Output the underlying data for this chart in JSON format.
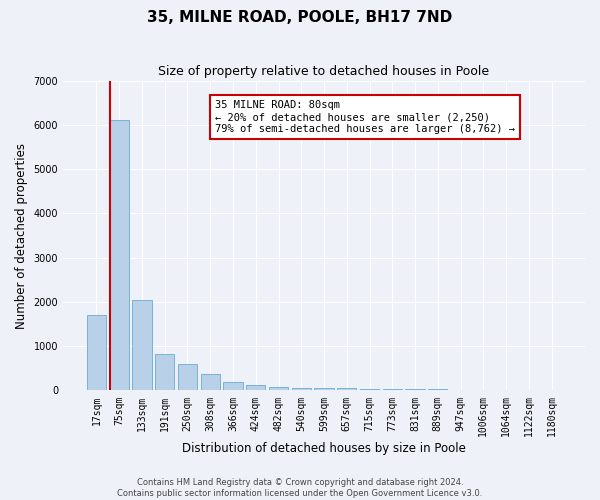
{
  "title": "35, MILNE ROAD, POOLE, BH17 7ND",
  "subtitle": "Size of property relative to detached houses in Poole",
  "xlabel": "Distribution of detached houses by size in Poole",
  "ylabel": "Number of detached properties",
  "bar_labels": [
    "17sqm",
    "75sqm",
    "133sqm",
    "191sqm",
    "250sqm",
    "308sqm",
    "366sqm",
    "424sqm",
    "482sqm",
    "540sqm",
    "599sqm",
    "657sqm",
    "715sqm",
    "773sqm",
    "831sqm",
    "889sqm",
    "947sqm",
    "1006sqm",
    "1064sqm",
    "1122sqm",
    "1180sqm"
  ],
  "bar_values": [
    1700,
    6100,
    2050,
    820,
    600,
    380,
    180,
    115,
    75,
    65,
    50,
    45,
    40,
    32,
    28,
    22,
    18,
    15,
    12,
    10,
    8
  ],
  "bar_color": "#b8d0e8",
  "bar_edge_color": "#6aabd2",
  "property_line_x": 1,
  "annotation_text": "35 MILNE ROAD: 80sqm\n← 20% of detached houses are smaller (2,250)\n79% of semi-detached houses are larger (8,762) →",
  "annotation_box_color": "#ffffff",
  "annotation_box_edge": "#cc0000",
  "vline_color": "#cc0000",
  "ylim": [
    0,
    7000
  ],
  "yticks": [
    0,
    1000,
    2000,
    3000,
    4000,
    5000,
    6000,
    7000
  ],
  "footer_line1": "Contains HM Land Registry data © Crown copyright and database right 2024.",
  "footer_line2": "Contains public sector information licensed under the Open Government Licence v3.0.",
  "background_color": "#eef2f8",
  "axes_background": "#eef2f8",
  "grid_color": "#ffffff",
  "title_fontsize": 11,
  "subtitle_fontsize": 9,
  "tick_fontsize": 7,
  "ylabel_fontsize": 8.5,
  "xlabel_fontsize": 8.5,
  "footer_fontsize": 6,
  "annotation_fontsize": 7.5
}
